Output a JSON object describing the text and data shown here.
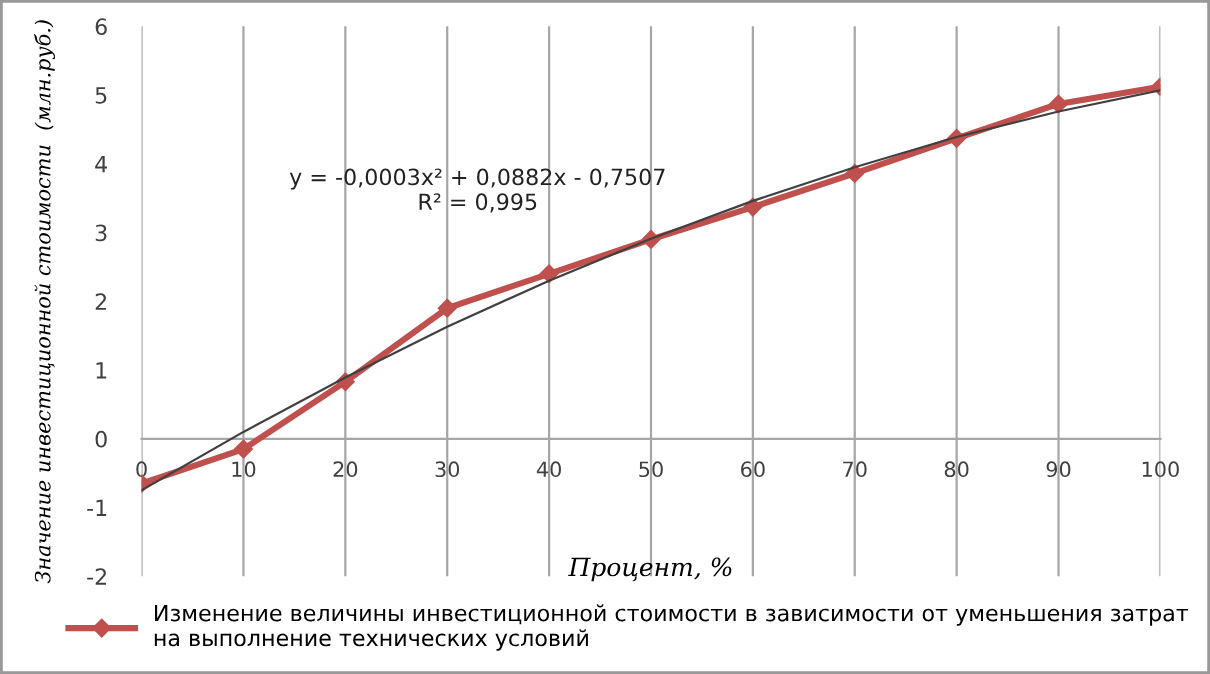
{
  "chart_data": {
    "type": "line",
    "xlabel": "Процент, %",
    "ylabel": "Значение инвестиционной стоимости  (млн.руб.)",
    "x": [
      0,
      10,
      20,
      30,
      40,
      50,
      60,
      70,
      80,
      90,
      100
    ],
    "series": [
      {
        "name": "Изменение величины инвестиционной стоимости в зависимости от уменьшения затрат\nна выполнение технических условий",
        "color": "#c0504d",
        "marker": "diamond",
        "values": [
          -0.65,
          -0.15,
          0.83,
          1.9,
          2.4,
          2.9,
          3.37,
          3.86,
          4.37,
          4.87,
          5.12
        ]
      },
      {
        "color": "#404040",
        "marker": "none",
        "values": [
          -0.75,
          0.1,
          0.89,
          1.63,
          2.3,
          2.91,
          3.46,
          3.95,
          4.39,
          4.76,
          5.07
        ]
      }
    ],
    "xlim": [
      0,
      100
    ],
    "xticks": [
      0,
      10,
      20,
      30,
      40,
      50,
      60,
      70,
      80,
      90,
      100
    ],
    "ylim": [
      -2,
      6
    ],
    "yticks": [
      -2,
      -1,
      0,
      1,
      2,
      3,
      4,
      5,
      6
    ],
    "grid": "x",
    "legend": "bottom",
    "line_style": "solid",
    "annotations": [
      "y = -0,0003x² + 0,0882x - 0,7507\nR² = 0,995"
    ]
  }
}
